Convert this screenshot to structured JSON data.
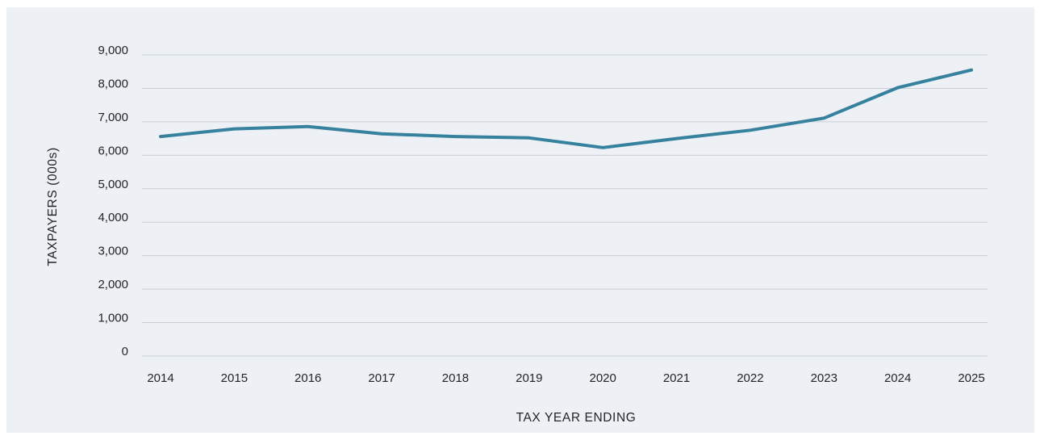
{
  "chart_data": {
    "type": "line",
    "title": "",
    "xlabel": "TAX YEAR ENDING",
    "ylabel": "TAXPAYERS (000s)",
    "x": [
      "2014",
      "2015",
      "2016",
      "2017",
      "2018",
      "2019",
      "2020",
      "2021",
      "2022",
      "2023",
      "2024",
      "2025"
    ],
    "y_ticks": [
      "0",
      "1,000",
      "2,000",
      "3,000",
      "4,000",
      "5,000",
      "6,000",
      "7,000",
      "8,000",
      "9,000"
    ],
    "ylim": [
      0,
      9000
    ],
    "grid": true,
    "legend": "none",
    "series": [
      {
        "values": [
          6560,
          6790,
          6860,
          6640,
          6560,
          6520,
          6230,
          6500,
          6750,
          7110,
          8020,
          8550
        ],
        "color": "#36819d"
      }
    ]
  }
}
